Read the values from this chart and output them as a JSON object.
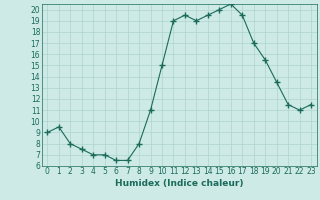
{
  "x": [
    0,
    1,
    2,
    3,
    4,
    5,
    6,
    7,
    8,
    9,
    10,
    11,
    12,
    13,
    14,
    15,
    16,
    17,
    18,
    19,
    20,
    21,
    22,
    23
  ],
  "y": [
    9,
    9.5,
    8,
    7.5,
    7,
    7,
    6.5,
    6.5,
    8,
    11,
    15,
    19,
    19.5,
    19,
    19.5,
    20,
    20.5,
    19.5,
    17,
    15.5,
    13.5,
    11.5,
    11,
    11.5
  ],
  "line_color": "#1a6b5a",
  "marker": "+",
  "marker_size": 4,
  "marker_lw": 1.0,
  "linewidth": 0.8,
  "bg_color": "#cdeae6",
  "grid_color": "#b0d4cf",
  "xlabel": "Humidex (Indice chaleur)",
  "xlabel_fontsize": 6.5,
  "tick_fontsize": 5.5,
  "ylim": [
    6,
    20.5
  ],
  "xlim": [
    -0.5,
    23.5
  ],
  "yticks": [
    6,
    7,
    8,
    9,
    10,
    11,
    12,
    13,
    14,
    15,
    16,
    17,
    18,
    19,
    20
  ],
  "xticks": [
    0,
    1,
    2,
    3,
    4,
    5,
    6,
    7,
    8,
    9,
    10,
    11,
    12,
    13,
    14,
    15,
    16,
    17,
    18,
    19,
    20,
    21,
    22,
    23
  ]
}
